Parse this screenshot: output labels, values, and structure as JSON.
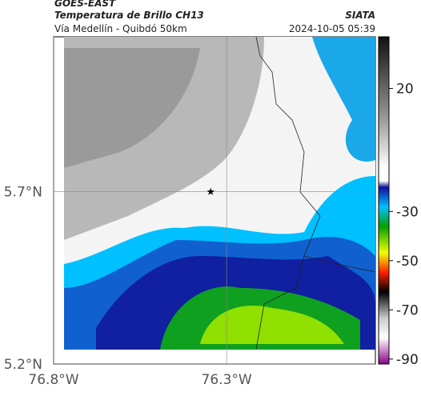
{
  "header": {
    "title": "GOES-EAST",
    "subtitle": "Temperatura de Brillo CH13",
    "source": "SIATA",
    "route": "Vía Medellín - Quibdó 50km",
    "datetime": "2024-10-05 05:39"
  },
  "map": {
    "lonlim": [
      -76.8,
      -75.87
    ],
    "latlim": [
      5.2,
      6.15
    ],
    "xticks": [
      {
        "value": -76.8,
        "label": "76.8°W"
      },
      {
        "value": -76.3,
        "label": "76.3°W"
      }
    ],
    "yticks": [
      {
        "value": 5.2,
        "label": "5.2°N"
      },
      {
        "value": 5.7,
        "label": "5.7°N"
      }
    ],
    "grid": true,
    "marker": {
      "lon": -76.346,
      "lat": 5.7
    }
  },
  "colorbar": {
    "lim": [
      -92,
      41
    ],
    "ticks": [
      20,
      -30,
      -50,
      -70,
      -90
    ]
  }
}
